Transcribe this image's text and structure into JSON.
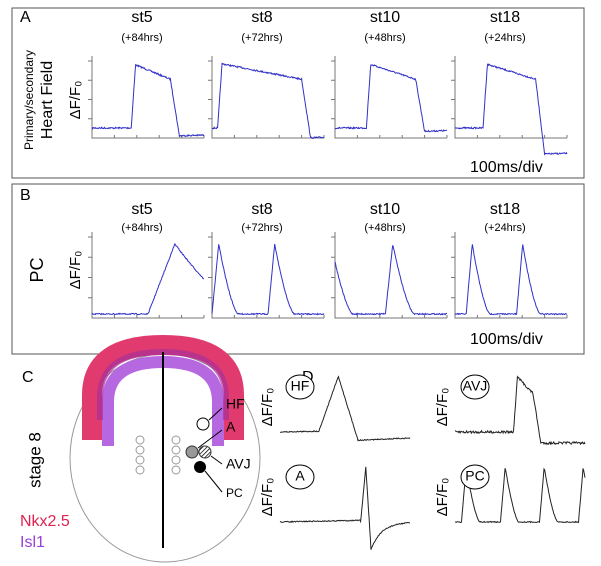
{
  "panel_a": {
    "label": "A",
    "side_label_1": "Primary/secondary",
    "side_label_2": "Heart Field",
    "y_label": "ΔF/F₀",
    "stages": [
      {
        "name": "st5",
        "hours": "(+84hrs)"
      },
      {
        "name": "st8",
        "hours": "(+72hrs)"
      },
      {
        "name": "st10",
        "hours": "(+48hrs)"
      },
      {
        "name": "st18",
        "hours": "(+24hrs)"
      }
    ],
    "scale": "100ms/div"
  },
  "panel_b": {
    "label": "B",
    "side_label": "PC",
    "y_label": "ΔF/F₀",
    "stages": [
      {
        "name": "st5",
        "hours": "(+84hrs)"
      },
      {
        "name": "st8",
        "hours": "(+72hrs)"
      },
      {
        "name": "st10",
        "hours": "(+48hrs)"
      },
      {
        "name": "st18",
        "hours": "(+24hrs)"
      }
    ],
    "scale": "100ms/div"
  },
  "panel_c": {
    "label": "C",
    "stage": "stage 8",
    "markers": [
      "HF",
      "A",
      "AVJ",
      "PC"
    ],
    "legend": [
      "Nkx2.5",
      "Isl1"
    ]
  },
  "panel_d": {
    "label": "D",
    "y_label": "ΔF/F₀",
    "traces": [
      "HF",
      "AVJ",
      "A",
      "PC"
    ]
  }
}
